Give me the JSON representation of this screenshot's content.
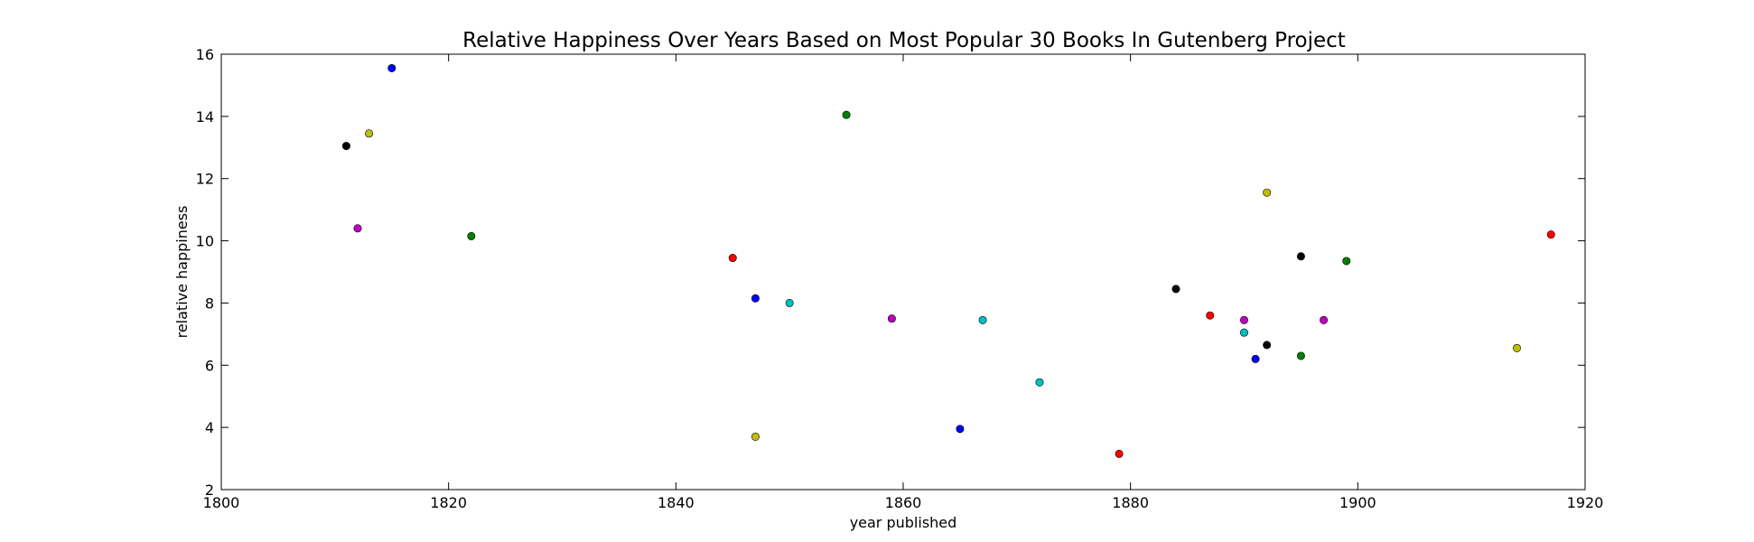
{
  "chart_data": {
    "type": "scatter",
    "title": "Relative Happiness Over Years Based on Most Popular 30 Books In Gutenberg Project",
    "xlabel": "year published",
    "ylabel": "relative happiness",
    "xlim": [
      1800,
      1920
    ],
    "ylim": [
      2,
      16
    ],
    "xticks": [
      1800,
      1820,
      1840,
      1860,
      1880,
      1900,
      1920
    ],
    "yticks": [
      2,
      4,
      6,
      8,
      10,
      12,
      14,
      16
    ],
    "grid": false,
    "points": [
      {
        "x": 1811,
        "y": 13.05,
        "color": "#000000"
      },
      {
        "x": 1812,
        "y": 10.4,
        "color": "#bf00bf"
      },
      {
        "x": 1813,
        "y": 13.45,
        "color": "#bfbf00"
      },
      {
        "x": 1815,
        "y": 15.55,
        "color": "#0000ff"
      },
      {
        "x": 1822,
        "y": 10.15,
        "color": "#008000"
      },
      {
        "x": 1845,
        "y": 9.45,
        "color": "#ff0000"
      },
      {
        "x": 1847,
        "y": 8.15,
        "color": "#0000ff"
      },
      {
        "x": 1847,
        "y": 3.7,
        "color": "#bfbf00"
      },
      {
        "x": 1850,
        "y": 8.0,
        "color": "#00bfbf"
      },
      {
        "x": 1855,
        "y": 14.05,
        "color": "#008000"
      },
      {
        "x": 1859,
        "y": 7.5,
        "color": "#bf00bf"
      },
      {
        "x": 1865,
        "y": 3.95,
        "color": "#0000ff"
      },
      {
        "x": 1867,
        "y": 7.45,
        "color": "#00bfbf"
      },
      {
        "x": 1872,
        "y": 5.45,
        "color": "#00bfbf"
      },
      {
        "x": 1879,
        "y": 3.15,
        "color": "#ff0000"
      },
      {
        "x": 1884,
        "y": 8.45,
        "color": "#000000"
      },
      {
        "x": 1887,
        "y": 7.6,
        "color": "#ff0000"
      },
      {
        "x": 1890,
        "y": 7.45,
        "color": "#bf00bf"
      },
      {
        "x": 1890,
        "y": 7.05,
        "color": "#00bfbf"
      },
      {
        "x": 1891,
        "y": 6.2,
        "color": "#0000ff"
      },
      {
        "x": 1892,
        "y": 6.65,
        "color": "#000000"
      },
      {
        "x": 1892,
        "y": 11.55,
        "color": "#bfbf00"
      },
      {
        "x": 1895,
        "y": 9.5,
        "color": "#000000"
      },
      {
        "x": 1895,
        "y": 6.3,
        "color": "#008000"
      },
      {
        "x": 1897,
        "y": 7.45,
        "color": "#bf00bf"
      },
      {
        "x": 1899,
        "y": 9.35,
        "color": "#008000"
      },
      {
        "x": 1914,
        "y": 6.55,
        "color": "#bfbf00"
      },
      {
        "x": 1917,
        "y": 10.2,
        "color": "#ff0000"
      }
    ]
  }
}
